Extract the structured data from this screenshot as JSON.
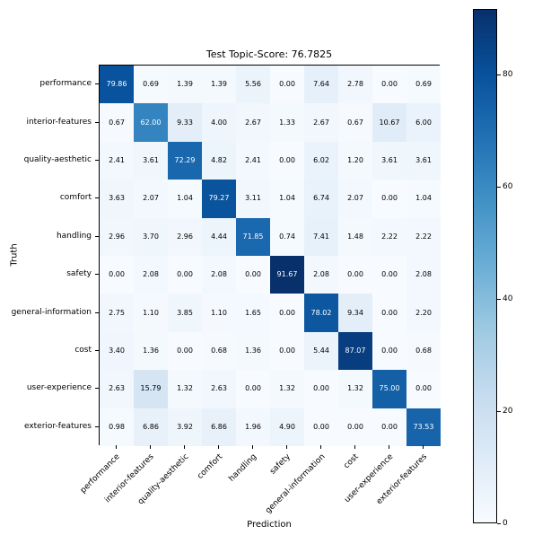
{
  "chart_data": {
    "type": "heatmap",
    "title": "Test Topic-Score: 76.7825",
    "xlabel": "Prediction",
    "ylabel": "Truth",
    "x_categories": [
      "performance",
      "interior-features",
      "quality-aesthetic",
      "comfort",
      "handling",
      "safety",
      "general-information",
      "cost",
      "user-experience",
      "exterior-features"
    ],
    "y_categories": [
      "performance",
      "interior-features",
      "quality-aesthetic",
      "comfort",
      "handling",
      "safety",
      "general-information",
      "cost",
      "user-experience",
      "exterior-features"
    ],
    "matrix": [
      [
        79.86,
        0.69,
        1.39,
        1.39,
        5.56,
        0.0,
        7.64,
        2.78,
        0.0,
        0.69
      ],
      [
        0.67,
        62.0,
        9.33,
        4.0,
        2.67,
        1.33,
        2.67,
        0.67,
        10.67,
        6.0
      ],
      [
        2.41,
        3.61,
        72.29,
        4.82,
        2.41,
        0.0,
        6.02,
        1.2,
        3.61,
        3.61
      ],
      [
        3.63,
        2.07,
        1.04,
        79.27,
        3.11,
        1.04,
        6.74,
        2.07,
        0.0,
        1.04
      ],
      [
        2.96,
        3.7,
        2.96,
        4.44,
        71.85,
        0.74,
        7.41,
        1.48,
        2.22,
        2.22
      ],
      [
        0.0,
        2.08,
        0.0,
        2.08,
        0.0,
        91.67,
        2.08,
        0.0,
        0.0,
        2.08
      ],
      [
        2.75,
        1.1,
        3.85,
        1.1,
        1.65,
        0.0,
        78.02,
        9.34,
        0.0,
        2.2
      ],
      [
        3.4,
        1.36,
        0.0,
        0.68,
        1.36,
        0.0,
        5.44,
        87.07,
        0.0,
        0.68
      ],
      [
        2.63,
        15.79,
        1.32,
        2.63,
        0.0,
        1.32,
        0.0,
        1.32,
        75.0,
        0.0
      ],
      [
        0.98,
        6.86,
        3.92,
        6.86,
        1.96,
        4.9,
        0.0,
        0.0,
        0.0,
        73.53
      ]
    ],
    "vmin": 0,
    "vmax": 91.67,
    "colorbar_ticks": [
      0,
      20,
      40,
      60,
      80
    ],
    "colormap": "Blues",
    "colormap_stops": [
      "#f7fbff",
      "#deebf7",
      "#c6dbef",
      "#9ecae1",
      "#6baed6",
      "#4292c6",
      "#2171b5",
      "#08519c",
      "#08306b"
    ],
    "cell_text_threshold": 45.84,
    "cell_text_colors": {
      "light": "#ffffff",
      "dark": "#000000"
    },
    "grid": false,
    "legend_position": "right-colorbar"
  }
}
